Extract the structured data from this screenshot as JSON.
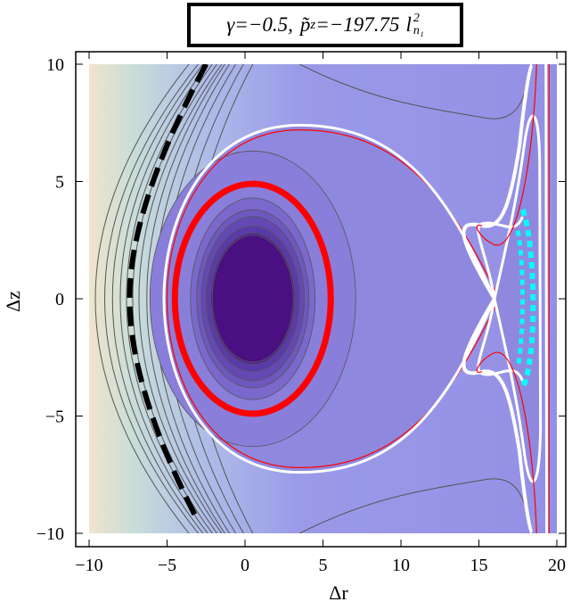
{
  "chart_data": {
    "type": "contour",
    "title": "γ=−0.5, p̃z=−197.75 l²n₁",
    "title_parts": {
      "gamma": "γ=−0.5,",
      "p_symbol": "p̃",
      "p_subscript": "z",
      "p_value": "=−197.75",
      "l_symbol": "l",
      "l_superscript": "2",
      "l_subscript": "n₁"
    },
    "xlabel": "Δr",
    "ylabel": "Δz",
    "xlim": [
      -10,
      20
    ],
    "ylim": [
      -10,
      10
    ],
    "x_ticks": [
      -10,
      -5,
      0,
      5,
      10,
      15,
      20
    ],
    "y_ticks": [
      -10,
      -5,
      0,
      5,
      10
    ],
    "x_tick_labels": [
      "−10",
      "−5",
      "0",
      "5",
      "10",
      "15",
      "20"
    ],
    "y_tick_labels": [
      "−10",
      "−5",
      "0",
      "5",
      "10"
    ],
    "center": [
      0.5,
      0
    ],
    "red_orbit": {
      "center": [
        0.5,
        0
      ],
      "semi_axis_r": 5,
      "semi_axis_z": 4.9,
      "color": "#ff0000"
    },
    "separatrix_x_point": [
      16,
      0
    ],
    "cyan_orbit": {
      "r_range": [
        17.8,
        18.6
      ],
      "z_range": [
        -3.8,
        3.8
      ],
      "color": "#00ffff"
    },
    "black_dashed_curve": {
      "vertex": [
        -7.4,
        0
      ],
      "top_end": [
        -2.5,
        10
      ],
      "bottom_end": [
        -3,
        -9.5
      ],
      "color": "#000000"
    },
    "colors": {
      "core": "#4a0f80",
      "field": "#9490e6",
      "outer_left": "#f0e4cc",
      "separatrix": "#ffffff",
      "contour_line": "#555555"
    },
    "grid": false
  }
}
